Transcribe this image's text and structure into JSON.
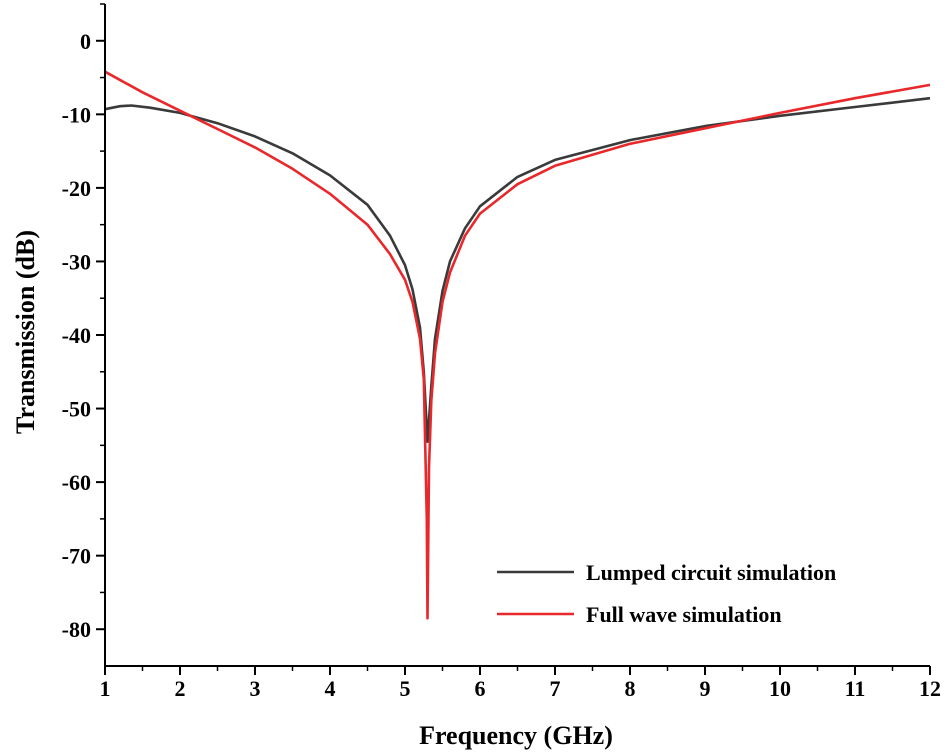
{
  "chart_data": {
    "type": "line",
    "xlabel": "Frequency (GHz)",
    "ylabel": "Transmission (dB)",
    "xlim": [
      1,
      12
    ],
    "ylim": [
      -85,
      5
    ],
    "xticks": [
      1,
      2,
      3,
      4,
      5,
      6,
      7,
      8,
      9,
      10,
      11,
      12
    ],
    "yticks": [
      0,
      -10,
      -20,
      -30,
      -40,
      -50,
      -60,
      -70,
      -80
    ],
    "legend_position": "bottom-right",
    "grid": false,
    "series": [
      {
        "name": "Lumped circuit simulation",
        "color": "#3a3a3a",
        "x": [
          1.0,
          1.2,
          1.35,
          1.6,
          2.0,
          2.5,
          3.0,
          3.5,
          4.0,
          4.5,
          4.8,
          5.0,
          5.1,
          5.2,
          5.25,
          5.3,
          5.35,
          5.4,
          5.5,
          5.6,
          5.8,
          6.0,
          6.5,
          7.0,
          8.0,
          9.0,
          10.0,
          11.0,
          12.0
        ],
        "y": [
          -9.3,
          -8.9,
          -8.8,
          -9.1,
          -9.8,
          -11.2,
          -13.0,
          -15.3,
          -18.3,
          -22.3,
          -26.5,
          -30.5,
          -33.8,
          -39.0,
          -45.0,
          -54.5,
          -47.0,
          -40.5,
          -34.0,
          -30.0,
          -25.5,
          -22.5,
          -18.5,
          -16.2,
          -13.5,
          -11.6,
          -10.2,
          -9.0,
          -7.8
        ]
      },
      {
        "name": "Full wave simulation",
        "color": "#e8282b",
        "x": [
          1.0,
          1.5,
          2.0,
          2.5,
          3.0,
          3.5,
          4.0,
          4.5,
          4.8,
          5.0,
          5.1,
          5.2,
          5.25,
          5.29,
          5.3,
          5.32,
          5.35,
          5.4,
          5.5,
          5.6,
          5.8,
          6.0,
          6.5,
          7.0,
          8.0,
          9.0,
          10.0,
          11.0,
          12.0
        ],
        "y": [
          -4.2,
          -7.0,
          -9.5,
          -12.0,
          -14.5,
          -17.4,
          -20.8,
          -25.0,
          -29.0,
          -32.5,
          -35.5,
          -40.5,
          -46.0,
          -65.0,
          -78.5,
          -58.0,
          -49.0,
          -42.5,
          -35.5,
          -31.5,
          -26.5,
          -23.5,
          -19.5,
          -17.0,
          -14.0,
          -11.9,
          -9.8,
          -7.8,
          -6.0
        ]
      }
    ]
  }
}
